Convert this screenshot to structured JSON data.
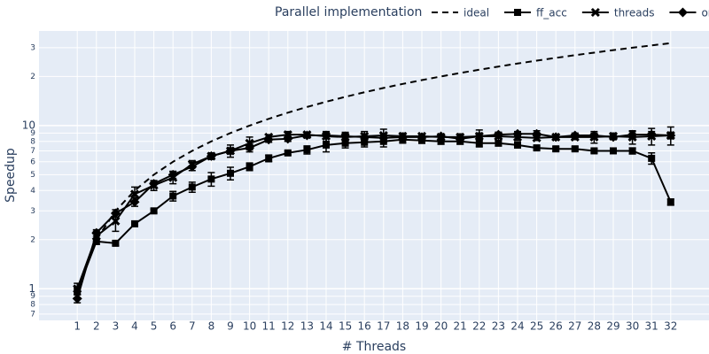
{
  "chart_data": {
    "type": "line",
    "x_label": "# Threads",
    "y_label": "Speedup",
    "legend_title": "Parallel implementation",
    "legend_position": "top",
    "y_scale": "log",
    "grid": true,
    "x": [
      1,
      2,
      3,
      4,
      5,
      6,
      7,
      8,
      9,
      10,
      11,
      12,
      13,
      14,
      15,
      16,
      17,
      18,
      19,
      20,
      21,
      22,
      23,
      24,
      25,
      26,
      27,
      28,
      29,
      30,
      31,
      32
    ],
    "xlim": [
      -1,
      34
    ],
    "xticks": [
      1,
      2,
      3,
      4,
      5,
      6,
      7,
      8,
      9,
      10,
      11,
      12,
      13,
      14,
      15,
      16,
      17,
      18,
      19,
      20,
      21,
      22,
      23,
      24,
      25,
      26,
      27,
      28,
      29,
      30,
      31,
      32
    ],
    "ylim": [
      0.64,
      38
    ],
    "yticks": [
      {
        "value": 0.7,
        "label": "7"
      },
      {
        "value": 0.8,
        "label": "8"
      },
      {
        "value": 0.9,
        "label": "9"
      },
      1,
      2,
      3,
      4,
      5,
      6,
      7,
      8,
      9,
      10,
      {
        "value": 20,
        "label": "2"
      },
      {
        "value": 30,
        "label": "3"
      }
    ],
    "series": [
      {
        "name": "ideal",
        "color": "#000000",
        "dash": "dash",
        "marker": "none",
        "values": [
          1,
          2,
          3,
          4,
          5,
          6,
          7,
          8,
          9,
          10,
          11,
          12,
          13,
          14,
          15,
          16,
          17,
          18,
          19,
          20,
          21,
          22,
          23,
          24,
          25,
          26,
          27,
          28,
          29,
          30,
          31,
          32
        ]
      },
      {
        "name": "ff_acc",
        "color": "#000000",
        "dash": "solid",
        "marker": "square",
        "values": [
          0.97,
          1.95,
          1.9,
          2.5,
          3.0,
          3.7,
          4.2,
          4.7,
          5.1,
          5.6,
          6.3,
          6.8,
          7.1,
          7.6,
          7.8,
          7.9,
          8.0,
          8.2,
          8.1,
          8.0,
          8.0,
          7.8,
          7.8,
          7.6,
          7.3,
          7.2,
          7.2,
          7.0,
          7.0,
          7.0,
          6.3,
          3.4
        ],
        "errors": [
          0.05,
          0.08,
          0.06,
          0.06,
          0.08,
          0.25,
          0.3,
          0.45,
          0.45,
          0.3,
          0.3,
          0.2,
          0.4,
          0.7,
          0.5,
          0.5,
          0.6,
          0.4,
          0.3,
          0.3,
          0.3,
          0.4,
          0.3,
          0.3,
          0.2,
          0.2,
          0.2,
          0.2,
          0.2,
          0.3,
          0.5,
          0.15
        ]
      },
      {
        "name": "threads",
        "color": "#000000",
        "dash": "solid",
        "marker": "x",
        "values": [
          1.0,
          2.1,
          2.6,
          3.8,
          4.3,
          4.8,
          5.8,
          6.5,
          7.0,
          7.8,
          8.5,
          8.8,
          8.8,
          8.6,
          8.5,
          8.6,
          8.7,
          8.6,
          8.6,
          8.5,
          8.5,
          8.6,
          8.6,
          8.5,
          8.4,
          8.5,
          8.5,
          8.5,
          8.6,
          8.5,
          8.6,
          8.7
        ],
        "errors": [
          0.08,
          0.15,
          0.35,
          0.4,
          0.3,
          0.4,
          0.3,
          0.3,
          0.6,
          0.7,
          0.3,
          0.4,
          0.3,
          0.6,
          0.6,
          0.6,
          0.8,
          0.4,
          0.3,
          0.3,
          0.4,
          0.8,
          0.5,
          0.4,
          0.3,
          0.3,
          0.3,
          0.7,
          0.4,
          0.8,
          1.0,
          1.1
        ]
      },
      {
        "name": "omp",
        "color": "#000000",
        "dash": "solid",
        "marker": "diamond",
        "values": [
          0.87,
          2.2,
          2.9,
          3.4,
          4.4,
          5.0,
          5.6,
          6.5,
          7.0,
          7.3,
          8.2,
          8.3,
          8.7,
          8.7,
          8.6,
          8.5,
          8.4,
          8.5,
          8.5,
          8.6,
          8.3,
          8.6,
          8.8,
          8.9,
          8.9,
          8.5,
          8.7,
          8.7,
          8.5,
          8.8,
          8.8,
          8.7
        ],
        "errors": [
          0.05,
          0.1,
          0.15,
          0.2,
          0.2,
          0.25,
          0.3,
          0.2,
          0.3,
          0.4,
          0.3,
          0.3,
          0.3,
          0.4,
          0.4,
          0.4,
          0.4,
          0.3,
          0.3,
          0.3,
          0.3,
          0.4,
          0.3,
          0.3,
          0.4,
          0.3,
          0.3,
          0.3,
          0.3,
          0.4,
          0.4,
          0.4
        ]
      }
    ]
  }
}
